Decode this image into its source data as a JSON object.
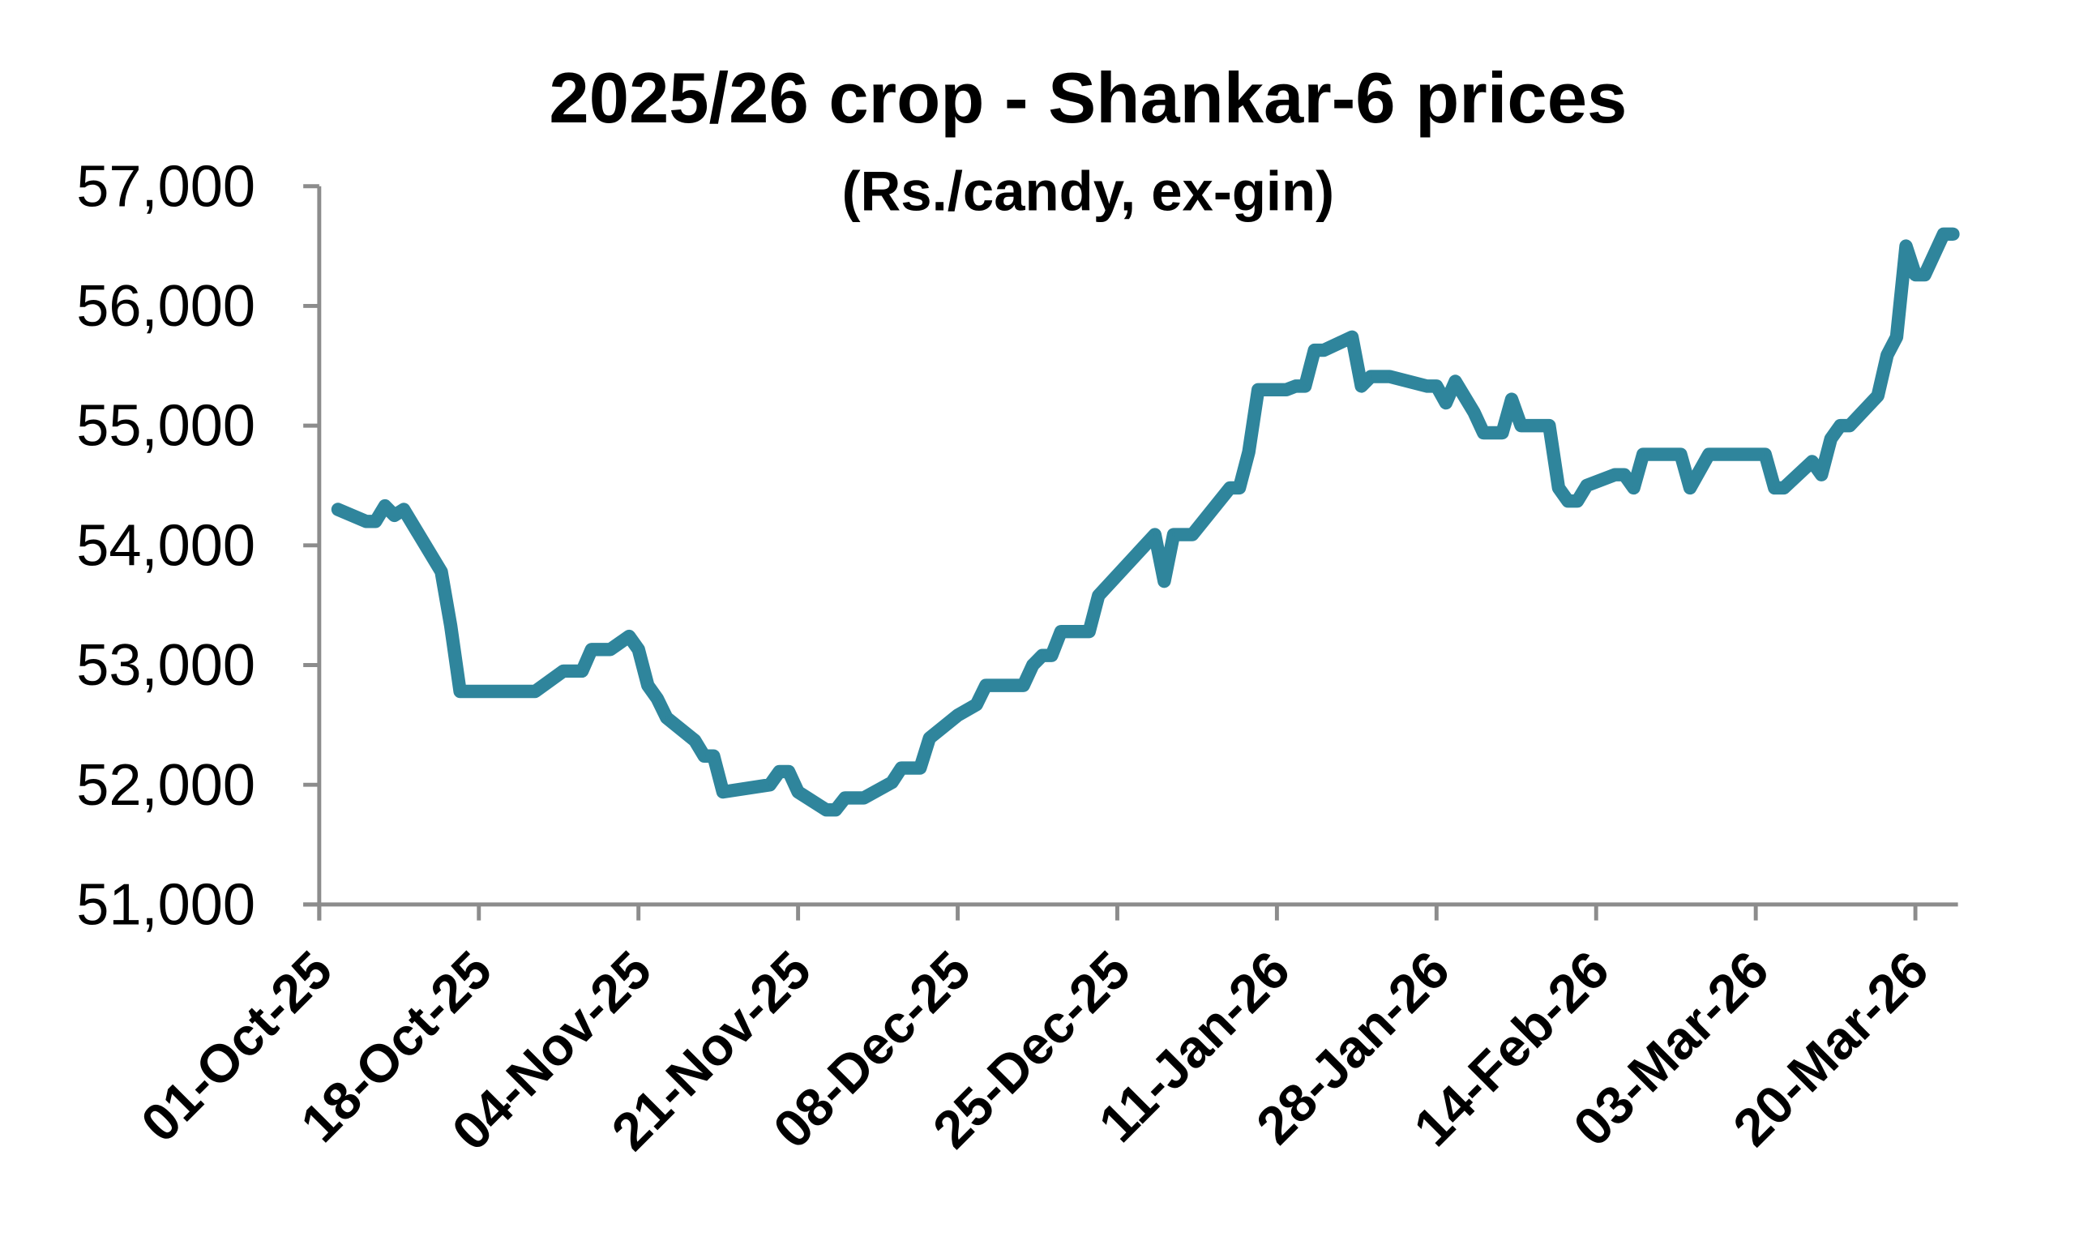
{
  "chart_data": {
    "type": "line",
    "title": "2025/26 crop - Shankar-6 prices",
    "subtitle": "(Rs./candy, ex-gin)",
    "xlabel": "",
    "ylabel": "",
    "ylim": [
      51000,
      57000
    ],
    "xlim": [
      "2025-10-01",
      "2026-03-25"
    ],
    "grid": false,
    "legend": "none",
    "line_color": "#2f859c",
    "axis_color": "#8c8c8c",
    "y_ticks": [
      "51,000",
      "52,000",
      "53,000",
      "54,000",
      "55,000",
      "56,000",
      "57,000"
    ],
    "x_ticks": [
      {
        "date": "2025-10-01",
        "label": "01-Oct-25"
      },
      {
        "date": "2025-10-18",
        "label": "18-Oct-25"
      },
      {
        "date": "2025-11-04",
        "label": "04-Nov-25"
      },
      {
        "date": "2025-11-21",
        "label": "21-Nov-25"
      },
      {
        "date": "2025-12-08",
        "label": "08-Dec-25"
      },
      {
        "date": "2025-12-25",
        "label": "25-Dec-25"
      },
      {
        "date": "2026-01-11",
        "label": "11-Jan-26"
      },
      {
        "date": "2026-01-28",
        "label": "28-Jan-26"
      },
      {
        "date": "2026-02-14",
        "label": "14-Feb-26"
      },
      {
        "date": "2026-03-03",
        "label": "03-Mar-26"
      },
      {
        "date": "2026-03-20",
        "label": "20-Mar-26"
      }
    ],
    "x": [
      "2025-10-03",
      "2025-10-06",
      "2025-10-07",
      "2025-10-08",
      "2025-10-09",
      "2025-10-10",
      "2025-10-14",
      "2025-10-15",
      "2025-10-16",
      "2025-10-24",
      "2025-10-27",
      "2025-10-29",
      "2025-10-30",
      "2025-11-01",
      "2025-11-03",
      "2025-11-04",
      "2025-11-05",
      "2025-11-06",
      "2025-11-07",
      "2025-11-10",
      "2025-11-11",
      "2025-11-12",
      "2025-11-13",
      "2025-11-18",
      "2025-11-19",
      "2025-11-20",
      "2025-11-21",
      "2025-11-24",
      "2025-11-25",
      "2025-11-26",
      "2025-11-28",
      "2025-12-01",
      "2025-12-02",
      "2025-12-04",
      "2025-12-05",
      "2025-12-08",
      "2025-12-10",
      "2025-12-11",
      "2025-12-15",
      "2025-12-16",
      "2025-12-17",
      "2025-12-18",
      "2025-12-19",
      "2025-12-22",
      "2025-12-23",
      "2025-12-29",
      "2025-12-30",
      "2025-12-31",
      "2026-01-02",
      "2026-01-06",
      "2026-01-07",
      "2026-01-08",
      "2026-01-09",
      "2026-01-12",
      "2026-01-13",
      "2026-01-14",
      "2026-01-15",
      "2026-01-16",
      "2026-01-19",
      "2026-01-20",
      "2026-01-21",
      "2026-01-23",
      "2026-01-27",
      "2026-01-28",
      "2026-01-29",
      "2026-01-30",
      "2026-02-01",
      "2026-02-02",
      "2026-02-04",
      "2026-02-05",
      "2026-02-06",
      "2026-02-09",
      "2026-02-10",
      "2026-02-11",
      "2026-02-12",
      "2026-02-13",
      "2026-02-16",
      "2026-02-17",
      "2026-02-18",
      "2026-02-19",
      "2026-02-23",
      "2026-02-24",
      "2026-02-26",
      "2026-03-04",
      "2026-03-05",
      "2026-03-06",
      "2026-03-09",
      "2026-03-10",
      "2026-03-11",
      "2026-03-12",
      "2026-03-13",
      "2026-03-16",
      "2026-03-17",
      "2026-03-18",
      "2026-03-19",
      "2026-03-20",
      "2026-03-21",
      "2026-03-23",
      "2026-03-24"
    ],
    "values": [
      54300,
      54200,
      54200,
      54330,
      54250,
      54300,
      53780,
      53330,
      52780,
      52780,
      52950,
      52950,
      53130,
      53130,
      53240,
      53130,
      52830,
      52720,
      52560,
      52370,
      52240,
      52240,
      51940,
      52000,
      52110,
      52110,
      51940,
      51790,
      51790,
      51890,
      51890,
      52020,
      52140,
      52140,
      52390,
      52580,
      52670,
      52830,
      52830,
      53000,
      53080,
      53080,
      53280,
      53280,
      53580,
      54090,
      53700,
      54090,
      54090,
      54480,
      54480,
      54780,
      55300,
      55300,
      55330,
      55330,
      55630,
      55630,
      55740,
      55330,
      55410,
      55410,
      55330,
      55330,
      55190,
      55370,
      55110,
      54940,
      54940,
      55220,
      55000,
      55000,
      54480,
      54370,
      54370,
      54500,
      54590,
      54590,
      54480,
      54760,
      54760,
      54480,
      54760,
      54760,
      54480,
      54480,
      54700,
      54590,
      54890,
      55000,
      55000,
      55250,
      55590,
      55740,
      56500,
      56260,
      56260,
      56600,
      56600
    ]
  }
}
